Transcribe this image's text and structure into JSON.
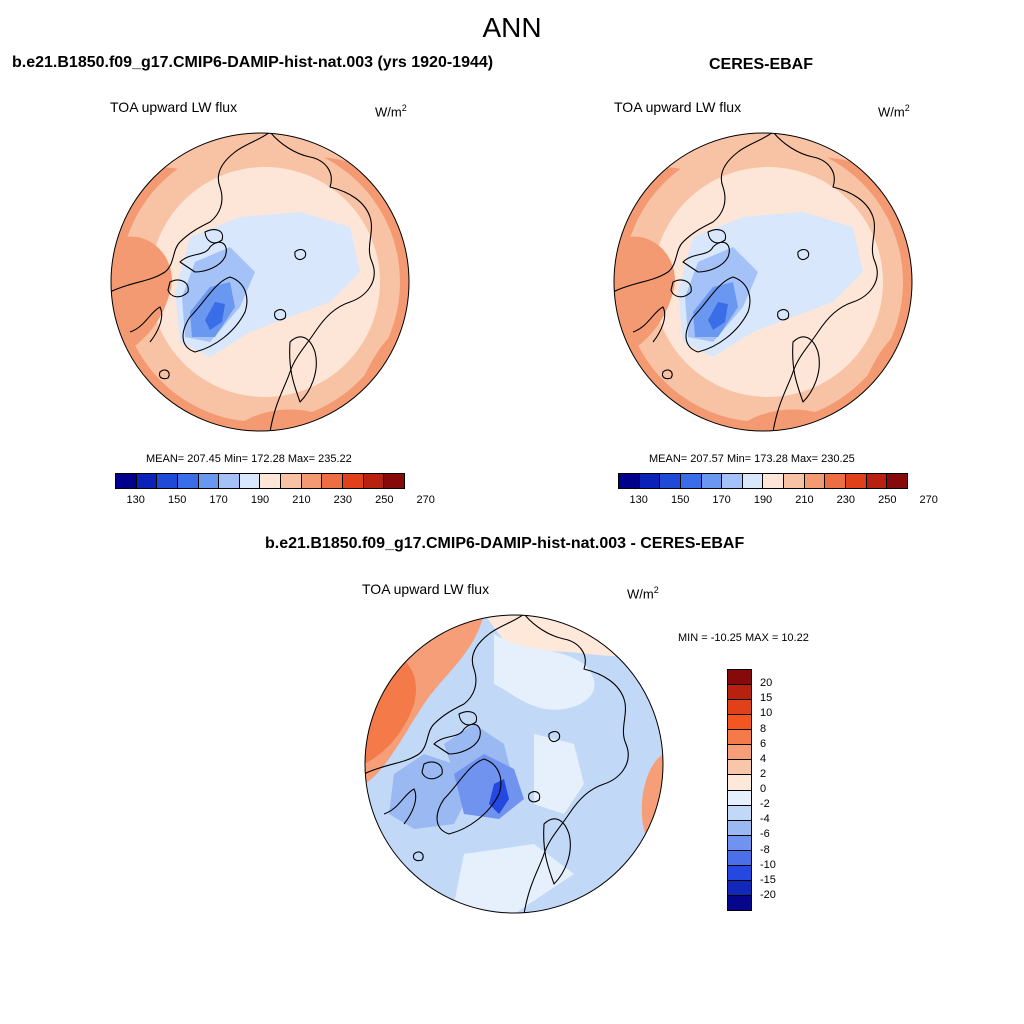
{
  "figure": {
    "title": "ANN"
  },
  "panels": [
    {
      "title": "b.e21.B1850.f09_g17.CMIP6-DAMIP-hist-nat.003 (yrs 1920-1944)",
      "label": "TOA upward LW flux",
      "units_base": "W/m",
      "units_sup": "2",
      "stats": "MEAN= 207.45  Min= 172.28  Max= 235.22",
      "colorbar": {
        "colors": [
          "#00008b",
          "#0a22b8",
          "#1f4ad8",
          "#3a6ee8",
          "#6a97f0",
          "#a4c2f7",
          "#d8e7fb",
          "#fde6d8",
          "#f8c2a4",
          "#f49a72",
          "#ee6e44",
          "#e0401a",
          "#b82010",
          "#870a0a"
        ],
        "ticks": [
          "130",
          "150",
          "170",
          "190",
          "210",
          "230",
          "250",
          "270"
        ]
      }
    },
    {
      "title": "CERES-EBAF",
      "label": "TOA upward LW flux",
      "units_base": "W/m",
      "units_sup": "2",
      "stats": "MEAN= 207.57  Min= 173.28  Max= 230.25",
      "colorbar": {
        "colors": [
          "#00008b",
          "#0a22b8",
          "#1f4ad8",
          "#3a6ee8",
          "#6a97f0",
          "#a4c2f7",
          "#d8e7fb",
          "#fde6d8",
          "#f8c2a4",
          "#f49a72",
          "#ee6e44",
          "#e0401a",
          "#b82010",
          "#870a0a"
        ],
        "ticks": [
          "130",
          "150",
          "170",
          "190",
          "210",
          "230",
          "250",
          "270"
        ]
      }
    },
    {
      "title": "b.e21.B1850.f09_g17.CMIP6-DAMIP-hist-nat.003 - CERES-EBAF",
      "label": "TOA upward LW flux",
      "units_base": "W/m",
      "units_sup": "2",
      "stats": "MIN = -10.25 MAX =  10.22",
      "colorbar": {
        "colors": [
          "#870a0a",
          "#b82010",
          "#e0401a",
          "#f4561f",
          "#f47a4a",
          "#f59e78",
          "#f8c6a8",
          "#fde8da",
          "#e6f0fc",
          "#c2d8f7",
          "#9ab8f2",
          "#6f93ee",
          "#4a6fe8",
          "#2448e0",
          "#1228b8",
          "#05068a"
        ],
        "ticks": [
          "20",
          "15",
          "10",
          "8",
          "6",
          "4",
          "2",
          "0",
          "-2",
          "-4",
          "-6",
          "-8",
          "-10",
          "-15",
          "-20"
        ]
      }
    }
  ]
}
